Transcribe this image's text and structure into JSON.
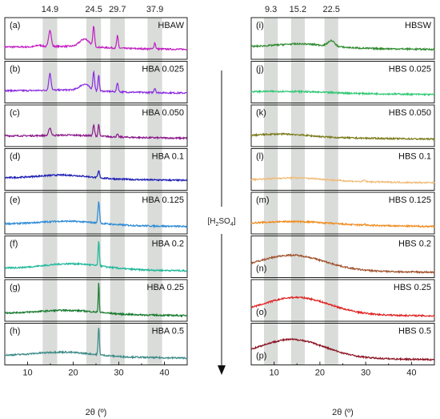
{
  "chart_data": [
    {
      "type": "line",
      "xlabel": "2θ (º)",
      "xlim": [
        5,
        45
      ],
      "x_ticks": [
        "10",
        "20",
        "30",
        "40"
      ],
      "band_positions": [
        "14.9",
        "24.5",
        "29.7",
        "37.9"
      ],
      "band_centers": [
        14.9,
        24.5,
        29.7,
        37.9
      ],
      "grid": false,
      "panels": [
        {
          "tag": "(a)",
          "name": "HBAW",
          "color": "#c21fc2",
          "baseline": 0.3,
          "peaks": [
            [
              12.5,
              0.05,
              1.0
            ],
            [
              14.9,
              0.55,
              0.4
            ],
            [
              22.5,
              0.25,
              1.5
            ],
            [
              24.5,
              0.65,
              0.25
            ],
            [
              29.7,
              0.4,
              0.25
            ],
            [
              37.9,
              0.2,
              0.25
            ]
          ],
          "hump": [
            20,
            0.05,
            8
          ]
        },
        {
          "tag": "(b)",
          "name": "HBA 0.025",
          "color": "#8a2be2",
          "baseline": 0.3,
          "peaks": [
            [
              14.9,
              0.55,
              0.35
            ],
            [
              22.5,
              0.2,
              1.5
            ],
            [
              24.5,
              0.6,
              0.25
            ],
            [
              25.6,
              0.55,
              0.2
            ],
            [
              29.7,
              0.3,
              0.25
            ],
            [
              37.9,
              0.15,
              0.25
            ]
          ],
          "hump": [
            20,
            0.05,
            8
          ]
        },
        {
          "tag": "(c)",
          "name": "HBA 0.050",
          "color": "#8b1a8b",
          "baseline": 0.25,
          "peaks": [
            [
              14.9,
              0.25,
              0.35
            ],
            [
              24.5,
              0.35,
              0.25
            ],
            [
              25.6,
              0.4,
              0.2
            ],
            [
              29.7,
              0.08,
              0.25
            ]
          ],
          "hump": [
            20,
            0.05,
            8
          ]
        },
        {
          "tag": "(d)",
          "name": "HBA 0.1",
          "color": "#1a1ab4",
          "baseline": 0.3,
          "peaks": [
            [
              25.6,
              0.22,
              0.25
            ]
          ],
          "hump": [
            18,
            0.12,
            8
          ]
        },
        {
          "tag": "(e)",
          "name": "HBA 0.125",
          "color": "#2a8ad6",
          "baseline": 0.22,
          "peaks": [
            [
              25.6,
              0.7,
              0.25
            ]
          ],
          "hump": [
            19,
            0.12,
            9
          ]
        },
        {
          "tag": "(f)",
          "name": "HBA 0.2",
          "color": "#1fb89a",
          "baseline": 0.2,
          "peaks": [
            [
              25.6,
              0.8,
              0.2
            ]
          ],
          "hump": [
            20,
            0.18,
            9
          ]
        },
        {
          "tag": "(g)",
          "name": "HBA 0.25",
          "color": "#167a2e",
          "baseline": 0.16,
          "peaks": [
            [
              25.6,
              1.0,
              0.15
            ]
          ],
          "hump": [
            19,
            0.12,
            9
          ]
        },
        {
          "tag": "(h)",
          "name": "HBA 0.5",
          "color": "#3a8a86",
          "baseline": 0.2,
          "peaks": [
            [
              25.6,
              0.9,
              0.2
            ]
          ],
          "hump": [
            18,
            0.14,
            9
          ]
        }
      ]
    },
    {
      "type": "line",
      "xlabel": "2θ (º)",
      "xlim": [
        5,
        45
      ],
      "x_ticks": [
        "10",
        "20",
        "30",
        "40"
      ],
      "band_positions": [
        "9.3",
        "15.2",
        "22.5"
      ],
      "band_centers": [
        9.3,
        15.2,
        22.5
      ],
      "grid": false,
      "panels": [
        {
          "tag": "(i)",
          "name": "HBSW",
          "color": "#2e8a2e",
          "baseline": 0.3,
          "peaks": [
            [
              22.5,
              0.18,
              1.0
            ]
          ],
          "hump": [
            16,
            0.12,
            8
          ]
        },
        {
          "tag": "(j)",
          "name": "HBS 0.025",
          "color": "#2ec873",
          "baseline": 0.25,
          "peaks": [],
          "hump": [
            14,
            0.04,
            10
          ]
        },
        {
          "tag": "(k)",
          "name": "HBS 0.050",
          "color": "#7a7a1a",
          "baseline": 0.22,
          "peaks": [],
          "hump": [
            12,
            0.1,
            8
          ]
        },
        {
          "tag": "(l)",
          "name": "HBS 0.1",
          "color": "#f0bc78",
          "baseline": 0.22,
          "peaks": [
            [
              29.7,
              0.05,
              0.3
            ]
          ],
          "hump": [
            15,
            0.1,
            9
          ]
        },
        {
          "tag": "(m)",
          "name": "HBS 0.125",
          "color": "#f08a1a",
          "baseline": 0.22,
          "peaks": [
            [
              29.7,
              0.04,
              0.3
            ]
          ],
          "hump": [
            15,
            0.1,
            10
          ]
        },
        {
          "tag": "(n)",
          "name": "HBS 0.2",
          "color": "#a0522d",
          "baseline": 0.15,
          "peaks": [],
          "hump": [
            14,
            0.5,
            10
          ]
        },
        {
          "tag": "(o)",
          "name": "HBS 0.25",
          "color": "#e02020",
          "baseline": 0.15,
          "peaks": [],
          "hump": [
            15,
            0.55,
            10
          ]
        },
        {
          "tag": "(p)",
          "name": "HBS 0.5",
          "color": "#8b1020",
          "baseline": 0.15,
          "peaks": [],
          "hump": [
            14,
            0.6,
            10
          ]
        }
      ]
    }
  ],
  "arrow_label": "[H₂SO₄]",
  "arrow_label_main": "[H",
  "arrow_label_sub1": "2",
  "arrow_label_mid": "SO",
  "arrow_label_sub2": "4",
  "arrow_label_end": "]"
}
